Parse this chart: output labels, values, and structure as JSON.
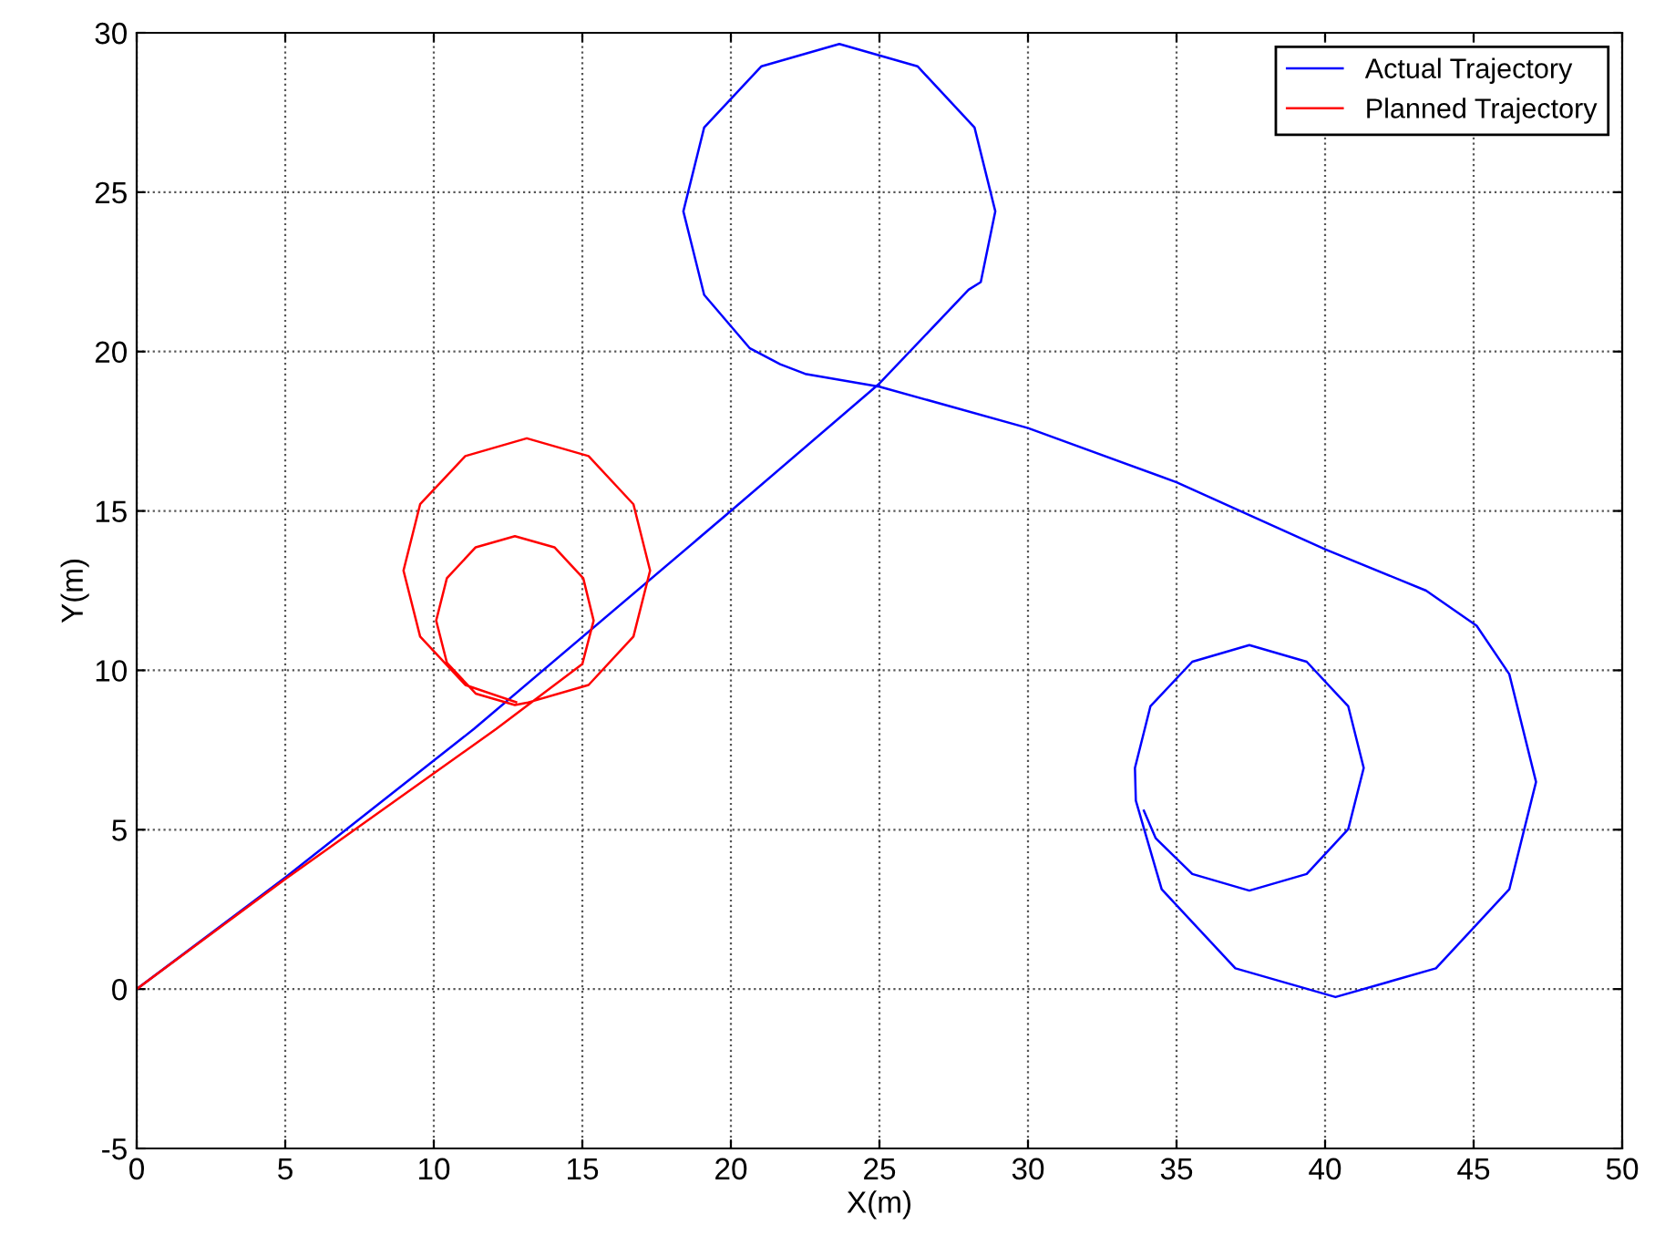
{
  "chart_data": {
    "type": "line",
    "xlabel": "X(m)",
    "ylabel": "Y(m)",
    "xlim": [
      0,
      50
    ],
    "ylim": [
      -5,
      30
    ],
    "xticks": [
      0,
      5,
      10,
      15,
      20,
      25,
      30,
      35,
      40,
      45,
      50
    ],
    "yticks": [
      -5,
      0,
      5,
      10,
      15,
      20,
      25,
      30
    ],
    "grid": true,
    "legend": "top right",
    "marker": "none",
    "line_style": "solid",
    "series": [
      {
        "name": "Actual Trajectory",
        "color": "#0000ff",
        "x": [
          0,
          5,
          11.35,
          20,
          25,
          28.0,
          28.41,
          28.9,
          28.2,
          26.28,
          23.65,
          21.03,
          19.1,
          18.4,
          19.1,
          20.64,
          21.66,
          22.5,
          25,
          30,
          35,
          40,
          43.4,
          45.1,
          46.2,
          47.1,
          46.2,
          43.73,
          40.35,
          36.98,
          34.5,
          33.63,
          33.6,
          34.12,
          35.53,
          37.45,
          39.38,
          40.78,
          41.3,
          40.78,
          39.38,
          37.45,
          35.53,
          34.3,
          33.9
        ],
        "values": [
          0,
          3.5,
          8.16,
          15.0,
          19.0,
          21.94,
          22.18,
          24.4,
          27.03,
          28.95,
          29.65,
          28.95,
          27.03,
          24.4,
          21.78,
          20.1,
          19.6,
          19.3,
          18.9,
          17.6,
          15.9,
          13.8,
          12.5,
          11.4,
          9.88,
          6.5,
          3.13,
          0.65,
          -0.25,
          0.65,
          3.13,
          5.91,
          6.94,
          8.87,
          10.27,
          10.79,
          10.27,
          8.87,
          6.94,
          5.02,
          3.61,
          3.09,
          3.61,
          4.73,
          5.6
        ]
      },
      {
        "name": "Planned Trajectory",
        "color": "#ff0000",
        "x": [
          0,
          5,
          12.1,
          15.0,
          15.38,
          15.03,
          14.06,
          12.73,
          11.41,
          10.44,
          10.08,
          10.44,
          11.41,
          12.73,
          13.13,
          15.21,
          16.72,
          17.28,
          16.72,
          15.21,
          13.13,
          11.06,
          9.54,
          8.98,
          9.54,
          11.06,
          12.77
        ],
        "values": [
          0,
          3.45,
          8.16,
          10.2,
          11.56,
          12.89,
          13.86,
          14.21,
          13.86,
          12.89,
          11.56,
          10.24,
          9.27,
          8.91,
          8.98,
          9.54,
          11.06,
          13.13,
          15.21,
          16.72,
          17.28,
          16.72,
          15.21,
          13.13,
          11.06,
          9.54,
          9.0
        ]
      }
    ]
  }
}
